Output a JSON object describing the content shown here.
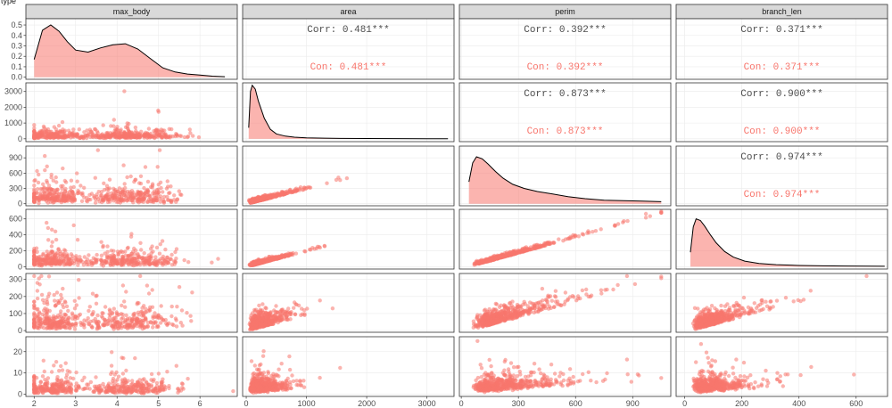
{
  "corner_text": "type",
  "columns": [
    "max_body",
    "area",
    "perim",
    "branch_len"
  ],
  "colors": {
    "point": "#f8766d",
    "density_fill": "#f8766d",
    "density_line": "#000000",
    "corr_all": "#4d4d4d",
    "corr_group": "#f8766d",
    "strip_bg": "#d9d9d9",
    "panel_border": "#333333",
    "grid": "#ebebeb"
  },
  "x_axes": [
    {
      "range": [
        1.8,
        6.9
      ],
      "ticks": [
        2,
        3,
        4,
        5,
        6
      ]
    },
    {
      "range": [
        -60,
        3450
      ],
      "ticks": [
        0,
        1000,
        2000,
        3000
      ]
    },
    {
      "range": [
        -10,
        1100
      ],
      "ticks": [
        0,
        300,
        600,
        900
      ]
    },
    {
      "range": [
        -30,
        710
      ],
      "ticks": [
        0,
        200,
        400,
        600
      ]
    }
  ],
  "y_axes": [
    {
      "range": [
        -0.02,
        0.56
      ],
      "ticks": [
        0.0,
        0.1,
        0.2,
        0.3,
        0.4,
        0.5
      ],
      "tick_labels": [
        "0.0",
        "0.1",
        "0.2",
        "0.3",
        "0.4",
        "0.5"
      ]
    },
    {
      "range": [
        -180,
        3550
      ],
      "ticks": [
        0,
        1000,
        2000,
        3000
      ],
      "tick_labels": [
        "0",
        "1000",
        "2000",
        "3000"
      ]
    },
    {
      "range": [
        -40,
        1130
      ],
      "ticks": [
        0,
        300,
        600,
        900
      ],
      "tick_labels": [
        "0",
        "300",
        "600",
        "900"
      ]
    },
    {
      "range": [
        -30,
        720
      ],
      "ticks": [
        0,
        200,
        400,
        600
      ],
      "tick_labels": [
        "0",
        "200",
        "400",
        "600"
      ]
    },
    {
      "range": [
        -10,
        335
      ],
      "ticks": [
        0,
        100,
        200,
        300
      ],
      "tick_labels": [
        "0",
        "100",
        "200",
        "300"
      ]
    },
    {
      "range": [
        -1,
        27
      ],
      "ticks": [
        0,
        10,
        20
      ],
      "tick_labels": [
        "0",
        "10",
        "20"
      ]
    }
  ],
  "chart_data": {
    "type": "scatter",
    "title": "",
    "variables": [
      "max_body",
      "area",
      "perim",
      "branch_len"
    ],
    "row_variables": [
      "",
      "area",
      "perim",
      "branch_len",
      "",
      ""
    ],
    "densities": [
      {
        "variable": "max_body",
        "x": [
          2.0,
          2.2,
          2.4,
          2.6,
          2.8,
          3.0,
          3.3,
          3.6,
          3.9,
          4.2,
          4.5,
          4.8,
          5.1,
          5.4,
          5.7,
          6.0,
          6.3,
          6.6
        ],
        "y": [
          0.17,
          0.45,
          0.5,
          0.44,
          0.34,
          0.26,
          0.24,
          0.28,
          0.31,
          0.32,
          0.27,
          0.18,
          0.09,
          0.05,
          0.03,
          0.02,
          0.01,
          0.005
        ]
      },
      {
        "variable": "area",
        "x": [
          40,
          70,
          100,
          150,
          200,
          300,
          400,
          500,
          650,
          800,
          1000,
          1300,
          1600,
          2000,
          2500,
          3000,
          3350
        ],
        "y": [
          700,
          3000,
          3400,
          3150,
          2400,
          1300,
          600,
          310,
          170,
          100,
          60,
          40,
          25,
          15,
          10,
          5,
          3
        ]
      },
      {
        "variable": "perim",
        "x": [
          40,
          60,
          80,
          110,
          140,
          180,
          220,
          270,
          330,
          400,
          480,
          560,
          650,
          750,
          850,
          950,
          1050
        ],
        "y": [
          430,
          800,
          920,
          880,
          780,
          630,
          500,
          380,
          300,
          240,
          190,
          140,
          100,
          70,
          60,
          50,
          40
        ]
      },
      {
        "variable": "branch_len",
        "x": [
          20,
          30,
          40,
          55,
          70,
          90,
          110,
          140,
          170,
          210,
          260,
          320,
          400,
          480,
          560,
          640,
          700
        ],
        "y": [
          180,
          500,
          600,
          580,
          510,
          400,
          300,
          190,
          120,
          70,
          40,
          25,
          15,
          10,
          8,
          6,
          5
        ]
      }
    ],
    "correlations": [
      {
        "row": 0,
        "col": 1,
        "all": "Corr: 0.481***",
        "group": "Con: 0.481***"
      },
      {
        "row": 0,
        "col": 2,
        "all": "Corr: 0.392***",
        "group": "Con: 0.392***"
      },
      {
        "row": 0,
        "col": 3,
        "all": "Corr: 0.371***",
        "group": "Con: 0.371***"
      },
      {
        "row": 1,
        "col": 2,
        "all": "Corr: 0.873***",
        "group": "Con: 0.873***"
      },
      {
        "row": 1,
        "col": 3,
        "all": "Corr: 0.900***",
        "group": "Con: 0.900***"
      },
      {
        "row": 2,
        "col": 3,
        "all": "Corr: 0.974***",
        "group": "Con: 0.974***"
      }
    ],
    "scatter_specs": {
      "x_marginals": [
        {
          "kind": "bimodal",
          "modes": [
            [
              2.4,
              0.35,
              0.45
            ],
            [
              4.3,
              0.6,
              0.55
            ]
          ],
          "min": 2.0,
          "max": 6.8
        },
        {
          "kind": "skew",
          "min": 20,
          "typical": 300,
          "max": 3400
        },
        {
          "kind": "skew",
          "min": 40,
          "typical": 220,
          "max": 1050
        },
        {
          "kind": "skew",
          "min": 20,
          "typical": 90,
          "max": 700
        }
      ],
      "row_ranges": [
        null,
        {
          "typical": 300,
          "max": 3400
        },
        {
          "typical": 200,
          "max": 1050
        },
        {
          "typical": 110,
          "max": 700
        },
        {
          "typical": 80,
          "max": 320
        },
        {
          "typical": 4,
          "max": 25
        }
      ]
    }
  }
}
